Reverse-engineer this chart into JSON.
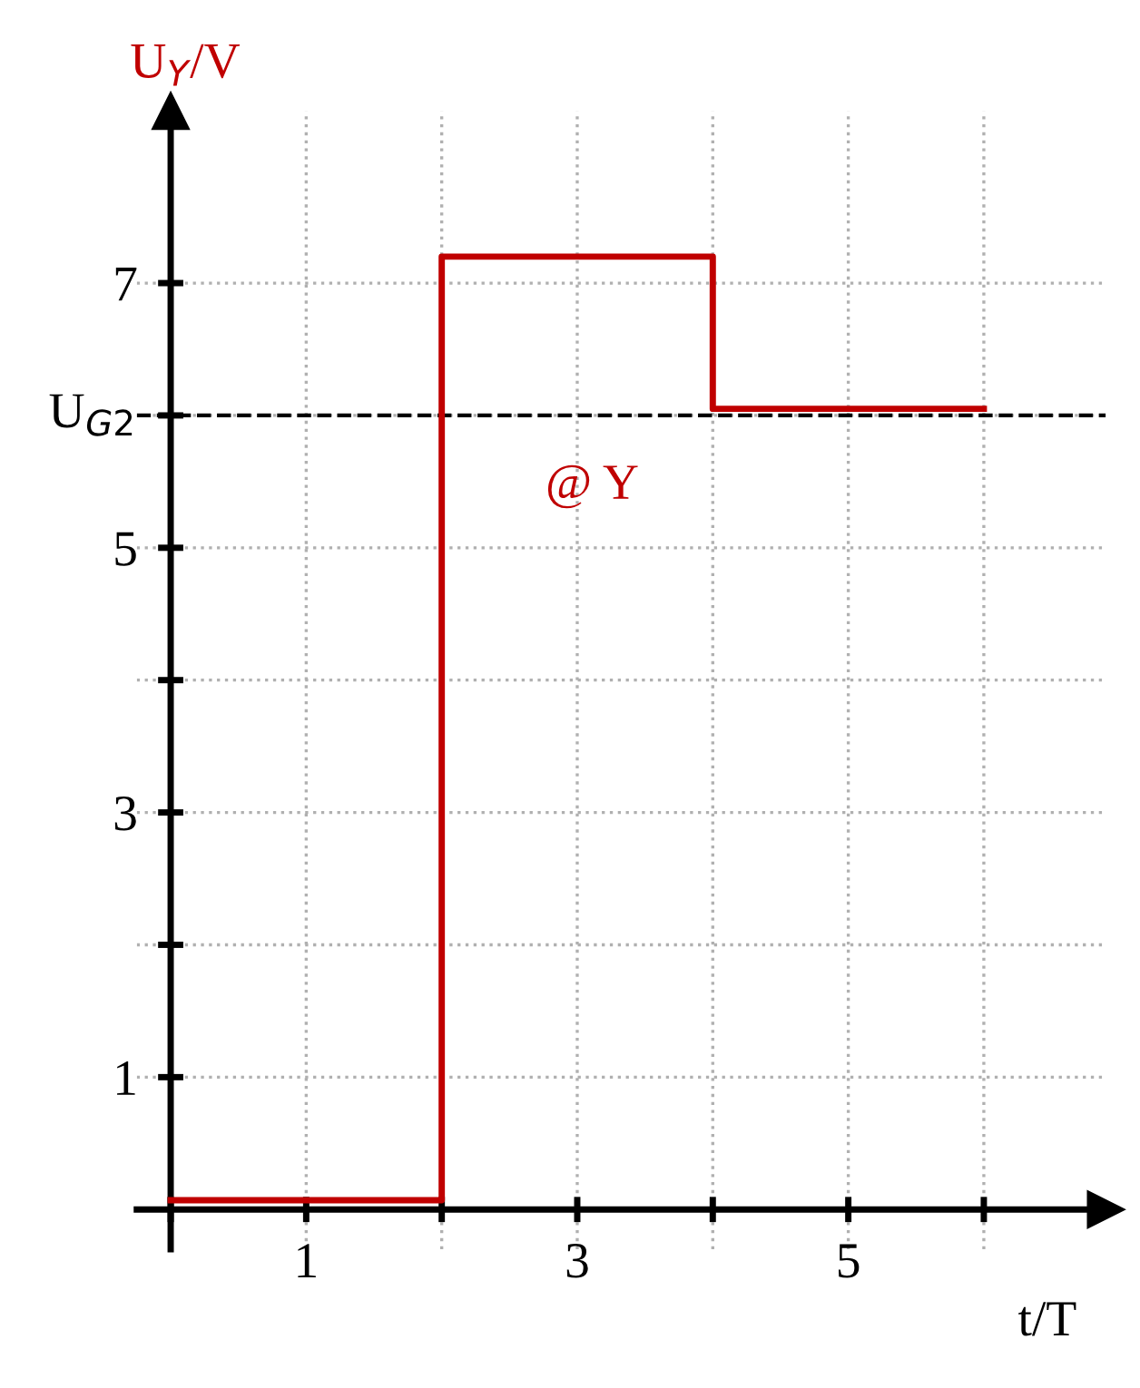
{
  "chart_data": {
    "type": "step",
    "ylabel": "U$_{Y}$/V",
    "xlabel": "t/T",
    "x": [
      0,
      2,
      4,
      6
    ],
    "series": [
      {
        "color": "#c00000",
        "values": [
          0.07,
          7.2,
          6.05,
          6.05
        ]
      }
    ],
    "xlim": [
      -0.25,
      6.9
    ],
    "ylim": [
      -0.3,
      8.3
    ],
    "xticks": [
      {
        "value": 0,
        "label": null
      },
      1,
      {
        "value": 2,
        "label": null
      },
      3,
      {
        "value": 4,
        "label": null
      },
      5,
      {
        "value": 6,
        "label": null
      }
    ],
    "yticks": [
      1,
      {
        "value": 2,
        "label": null
      },
      3,
      {
        "value": 4,
        "label": null
      },
      5,
      {
        "value": 6,
        "label": null
      },
      7
    ],
    "ref_lines": [
      {
        "axis": "y",
        "value": 6,
        "label": "U$_{G2}$",
        "color": "#000000",
        "line_style": "dashed"
      }
    ],
    "annotations": [
      "@ Y"
    ],
    "grid": true,
    "marker": "none",
    "line_style": "solid"
  }
}
